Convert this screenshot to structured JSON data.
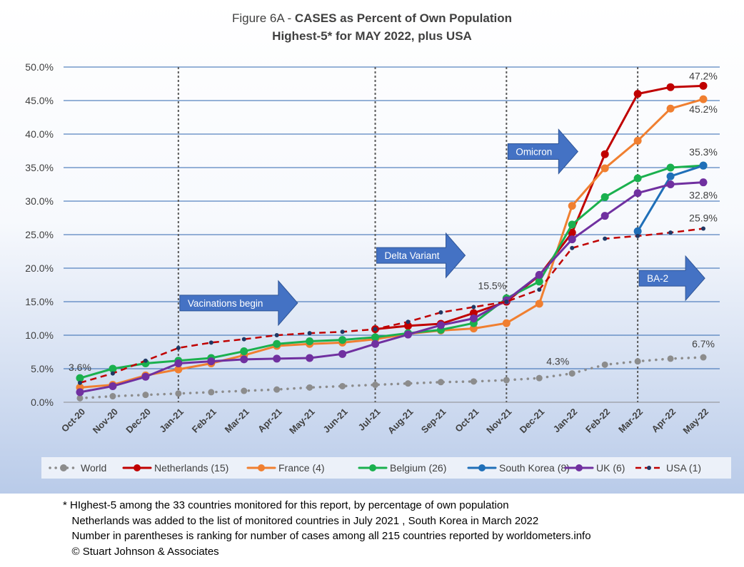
{
  "title_prefix": "Figure 6A - ",
  "title_bold": "CASES as Percent of Own Population",
  "subtitle": "Highest-5* for MAY 2022, plus USA",
  "chart_data": {
    "type": "line",
    "title": "Figure 6A - CASES as Percent of Own Population",
    "subtitle": "Highest-5* for MAY 2022, plus USA",
    "categories": [
      "Oct-20",
      "Nov-20",
      "Dec-20",
      "Jan-21",
      "Feb-21",
      "Mar-21",
      "Apr-21",
      "May-21",
      "Jun-21",
      "Jul-21",
      "Aug-21",
      "Sep-21",
      "Oct-21",
      "Nov-21",
      "Dec-21",
      "Jan-22",
      "Feb-22",
      "Mar-22",
      "Apr-22",
      "May-22"
    ],
    "ylim": [
      0,
      50
    ],
    "yticks": [
      "0.0%",
      "5.0%",
      "10.0%",
      "15.0%",
      "20.0%",
      "25.0%",
      "30.0%",
      "35.0%",
      "40.0%",
      "45.0%",
      "50.0%"
    ],
    "grid": true,
    "legend_position": "bottom",
    "series": [
      {
        "name": "World",
        "color": "#8c8c8c",
        "style": "dotted",
        "values": [
          0.6,
          0.9,
          1.1,
          1.3,
          1.5,
          1.7,
          1.9,
          2.2,
          2.4,
          2.6,
          2.8,
          3.0,
          3.1,
          3.3,
          3.6,
          4.3,
          5.6,
          6.1,
          6.5,
          6.7
        ]
      },
      {
        "name": "Netherlands (15)",
        "color": "#c00000",
        "style": "solid",
        "values": [
          null,
          null,
          null,
          null,
          null,
          null,
          null,
          null,
          null,
          10.9,
          11.4,
          11.7,
          13.3,
          15.0,
          18.9,
          25.3,
          37.0,
          46.0,
          47.0,
          47.2
        ]
      },
      {
        "name": "France (4)",
        "color": "#f07f30",
        "style": "solid",
        "values": [
          2.2,
          2.6,
          4.0,
          4.9,
          5.8,
          7.0,
          8.4,
          8.7,
          8.9,
          9.4,
          10.2,
          10.7,
          11.0,
          11.8,
          14.7,
          29.3,
          34.9,
          39.0,
          43.8,
          45.2
        ]
      },
      {
        "name": "Belgium (26)",
        "color": "#1ab04e",
        "style": "solid",
        "values": [
          3.6,
          5.0,
          5.8,
          6.2,
          6.6,
          7.6,
          8.7,
          9.1,
          9.3,
          9.7,
          10.3,
          10.8,
          11.8,
          15.5,
          18.0,
          26.5,
          30.6,
          33.4,
          35.0,
          35.3
        ]
      },
      {
        "name": "South Korea (8)",
        "color": "#1f6fb8",
        "style": "solid",
        "values": [
          null,
          null,
          null,
          null,
          null,
          null,
          null,
          null,
          null,
          null,
          null,
          null,
          null,
          null,
          null,
          null,
          null,
          25.5,
          33.7,
          35.3
        ]
      },
      {
        "name": "UK (6)",
        "color": "#7030a0",
        "style": "solid",
        "values": [
          1.5,
          2.4,
          3.8,
          5.8,
          6.1,
          6.4,
          6.5,
          6.6,
          7.2,
          8.7,
          10.1,
          11.5,
          12.5,
          15.2,
          19.0,
          24.3,
          27.8,
          31.2,
          32.5,
          32.8
        ]
      },
      {
        "name": "USA (1)",
        "color": "#c00000",
        "style": "dashed",
        "values": [
          2.9,
          4.3,
          6.2,
          8.1,
          8.9,
          9.4,
          10.0,
          10.3,
          10.5,
          10.9,
          12.0,
          13.4,
          14.2,
          15.0,
          16.8,
          23.0,
          24.4,
          24.8,
          25.3,
          25.9
        ]
      }
    ],
    "data_labels": [
      {
        "text": "3.6%",
        "series": "Belgium (26)",
        "index": 0
      },
      {
        "text": "15.5%",
        "series": "Belgium (26)",
        "index": 13
      },
      {
        "text": "4.3%",
        "series": "World",
        "index": 15
      },
      {
        "text": "6.7%",
        "series": "World",
        "index": 19
      },
      {
        "text": "47.2%",
        "series": "Netherlands (15)",
        "index": 19
      },
      {
        "text": "45.2%",
        "series": "France (4)",
        "index": 19
      },
      {
        "text": "35.3%",
        "series": "Belgium (26)",
        "index": 19
      },
      {
        "text": "32.8%",
        "series": "UK (6)",
        "index": 19
      },
      {
        "text": "25.9%",
        "series": "USA (1)",
        "index": 19
      }
    ],
    "vertical_markers": [
      "Jan-21",
      "Jul-21",
      "Nov-21",
      "Mar-22"
    ],
    "annotations": [
      {
        "text": "Vacinations begin",
        "at": "Jan-21",
        "y": 14.8
      },
      {
        "text": "Delta Variant",
        "at": "Jul-21",
        "y": 21.9
      },
      {
        "text": "Omicron",
        "at": "Nov-21",
        "y": 37.4
      },
      {
        "text": "BA-2",
        "at": "Mar-22",
        "y": 18.5
      }
    ]
  },
  "footnotes": [
    "* HIghest-5 among the 33 countries monitored for this report, by percentage of own population",
    "   Netherlands was added to the list of monitored countries in July 2021 , South Korea in March 2022",
    "   Number in parentheses is ranking for number of cases among all 215 countries reported by worldometers.info",
    "   © Stuart Johnson & Associates"
  ]
}
